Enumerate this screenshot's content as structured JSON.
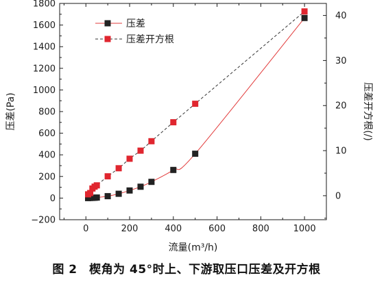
{
  "chart_data": {
    "type": "scatter",
    "xlabel": "流量(m³/h)",
    "ylabel": "压差(Pa)",
    "y2label": "压差开方根(/)",
    "xlim": [
      -120,
      1100
    ],
    "ylim": [
      -200,
      1800
    ],
    "y2lim": [
      -5.33,
      42.67
    ],
    "xticks": [
      0,
      200,
      400,
      600,
      800,
      1000
    ],
    "yticks": [
      -200,
      0,
      200,
      400,
      600,
      800,
      1000,
      1200,
      1400,
      1600,
      1800
    ],
    "y2ticks": [
      0,
      10,
      20,
      30,
      40
    ],
    "legend_position": "top-left",
    "series": [
      {
        "name": "压差",
        "axis": "left",
        "marker": "square",
        "color": "#222222",
        "line_color": "#e23b3b",
        "line_style": "solid",
        "x": [
          10,
          20,
          30,
          40,
          50,
          100,
          150,
          200,
          250,
          300,
          400,
          500,
          1000
        ],
        "y": [
          0,
          1,
          2,
          3,
          5,
          18,
          40,
          70,
          105,
          150,
          260,
          410,
          1665
        ]
      },
      {
        "name": "压差开方根",
        "axis": "right",
        "marker": "square",
        "color": "#e0262f",
        "line_color": "#333333",
        "line_style": "dashed",
        "x": [
          10,
          20,
          30,
          40,
          50,
          100,
          150,
          200,
          250,
          300,
          400,
          500,
          1000
        ],
        "y": [
          0.3,
          0.6,
          1.6,
          2.0,
          2.3,
          4.3,
          6.1,
          8.2,
          10.0,
          12.1,
          16.3,
          20.4,
          40.9
        ]
      }
    ]
  },
  "caption": "图 2　楔角为 45°时上、下游取压口压差及开方根"
}
